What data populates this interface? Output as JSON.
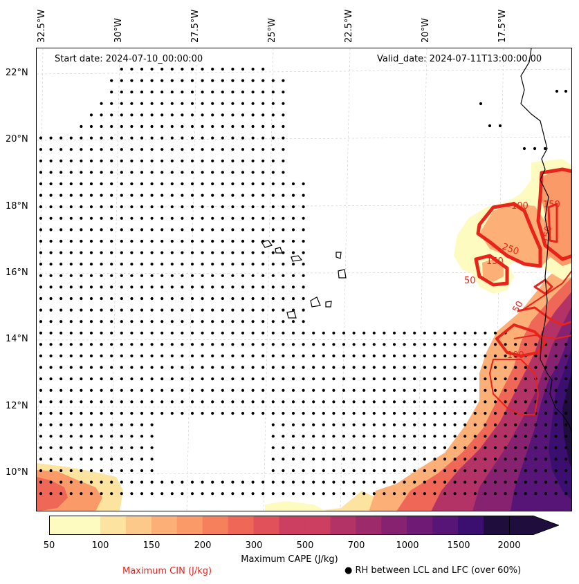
{
  "map": {
    "start_date": "Start date: 2024-07-10_00:00:00",
    "valid_date": "Valid_date: 2024-07-11T13:00:00.00",
    "lon_labels": [
      "32.5°W",
      "30°W",
      "27.5°W",
      "25°W",
      "22.5°W",
      "20°W",
      "17.5°W"
    ],
    "lat_labels": [
      "22°N",
      "20°N",
      "18°N",
      "16°N",
      "14°N",
      "12°N",
      "10°N"
    ],
    "contour_labels": [
      "100",
      "150",
      "250",
      "50",
      "150",
      "50",
      "150",
      "100"
    ]
  },
  "colorbar": {
    "title": "Maximum CAPE (J/kg)",
    "ticks": [
      "50",
      "100",
      "150",
      "200",
      "300",
      "500",
      "700",
      "1000",
      "1500",
      "2000"
    ],
    "colors": [
      "#fdfbbf",
      "#fde3a0",
      "#fdc98a",
      "#fcb077",
      "#fa9a68",
      "#f7805c",
      "#ee6757",
      "#e05159",
      "#cc3f61",
      "#b43366",
      "#9d2a6b",
      "#862270",
      "#6f1a74",
      "#561577",
      "#3b0f6f",
      "#1f0d3e"
    ]
  },
  "legend": {
    "cin_label": "Maximum CIN (J/kg)",
    "rh_label": "RH between LCL and LFC (over 60%)",
    "cin_color": "#e8231a"
  }
}
